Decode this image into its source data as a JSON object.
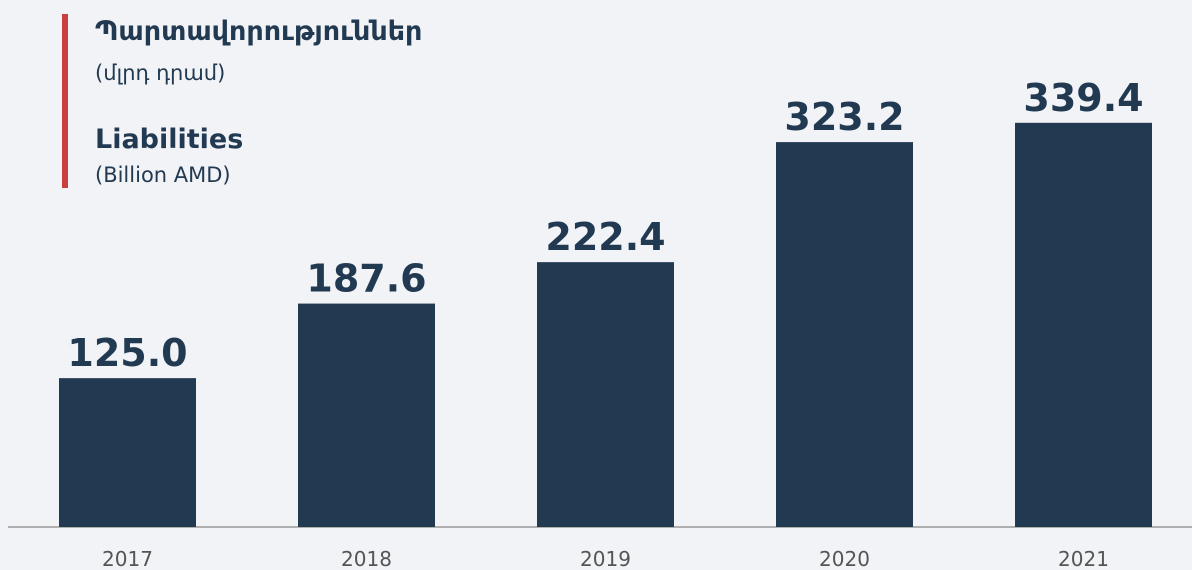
{
  "chart_data": {
    "type": "bar",
    "title": "Պարտավորություններ",
    "subtitle": "(մլրդ դրամ)",
    "title_en": "Liabilities",
    "subtitle_en": "(Billion AMD)",
    "categories": [
      "2017",
      "2018",
      "2019",
      "2020",
      "2021"
    ],
    "values": [
      125.0,
      187.6,
      222.4,
      323.2,
      339.4
    ],
    "value_labels": [
      "125.0",
      "187.6",
      "222.4",
      "323.2",
      "339.4"
    ],
    "color": "#213a52",
    "ylim": [
      0,
      440
    ]
  }
}
